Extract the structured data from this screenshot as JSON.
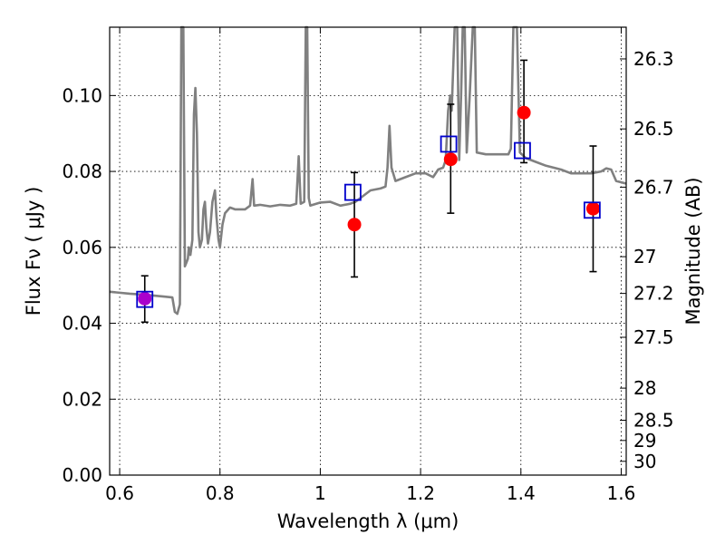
{
  "chart_data": {
    "type": "scatter",
    "title": "",
    "xlabel": "Wavelength  λ (μm)",
    "ylabel": "Flux  Fν  ( μJy )",
    "y2label": "Magnitude (AB)",
    "xlim": [
      0.58,
      1.61
    ],
    "ylim": [
      0.0,
      0.118
    ],
    "grid": true,
    "x_ticks": [
      0.6,
      0.8,
      1.0,
      1.2,
      1.4,
      1.6
    ],
    "x_tick_labels": [
      "0.6",
      "0.8",
      "1",
      "1.2",
      "1.4",
      "1.6"
    ],
    "y_ticks": [
      0.0,
      0.02,
      0.04,
      0.06,
      0.08,
      0.1
    ],
    "y_tick_labels": [
      "0.00",
      "0.02",
      "0.04",
      "0.06",
      "0.08",
      "0.10"
    ],
    "mag_ticks": [
      26.3,
      26.5,
      26.7,
      27,
      27.2,
      27.5,
      28,
      28.5,
      29,
      30
    ],
    "mag_tick_labels": [
      "26.3",
      "26.5",
      "26.7",
      "27",
      "27.2",
      "27.5",
      "28",
      "28.5",
      "29",
      "30"
    ],
    "model_spectrum": {
      "color": "#808080",
      "points": [
        [
          0.58,
          0.0483
        ],
        [
          0.62,
          0.0478
        ],
        [
          0.65,
          0.0475
        ],
        [
          0.69,
          0.047
        ],
        [
          0.705,
          0.0468
        ],
        [
          0.71,
          0.043
        ],
        [
          0.715,
          0.0425
        ],
        [
          0.72,
          0.045
        ],
        [
          0.723,
          0.118
        ],
        [
          0.727,
          0.118
        ],
        [
          0.73,
          0.055
        ],
        [
          0.733,
          0.056
        ],
        [
          0.736,
          0.057
        ],
        [
          0.738,
          0.06
        ],
        [
          0.741,
          0.058
        ],
        [
          0.745,
          0.062
        ],
        [
          0.748,
          0.095
        ],
        [
          0.751,
          0.102
        ],
        [
          0.754,
          0.09
        ],
        [
          0.757,
          0.064
        ],
        [
          0.76,
          0.06
        ],
        [
          0.764,
          0.062
        ],
        [
          0.767,
          0.07
        ],
        [
          0.77,
          0.072
        ],
        [
          0.773,
          0.065
        ],
        [
          0.776,
          0.061
        ],
        [
          0.78,
          0.064
        ],
        [
          0.785,
          0.072
        ],
        [
          0.79,
          0.075
        ],
        [
          0.793,
          0.068
        ],
        [
          0.797,
          0.062
        ],
        [
          0.8,
          0.06
        ],
        [
          0.805,
          0.066
        ],
        [
          0.81,
          0.069
        ],
        [
          0.82,
          0.0705
        ],
        [
          0.83,
          0.07
        ],
        [
          0.85,
          0.07
        ],
        [
          0.86,
          0.071
        ],
        [
          0.865,
          0.078
        ],
        [
          0.868,
          0.071
        ],
        [
          0.88,
          0.0712
        ],
        [
          0.9,
          0.0708
        ],
        [
          0.92,
          0.0712
        ],
        [
          0.94,
          0.071
        ],
        [
          0.952,
          0.0715
        ],
        [
          0.957,
          0.084
        ],
        [
          0.961,
          0.0715
        ],
        [
          0.968,
          0.072
        ],
        [
          0.971,
          0.118
        ],
        [
          0.974,
          0.118
        ],
        [
          0.977,
          0.073
        ],
        [
          0.98,
          0.071
        ],
        [
          1.0,
          0.0718
        ],
        [
          1.02,
          0.072
        ],
        [
          1.04,
          0.071
        ],
        [
          1.06,
          0.0715
        ],
        [
          1.07,
          0.072
        ],
        [
          1.08,
          0.073
        ],
        [
          1.1,
          0.075
        ],
        [
          1.12,
          0.0755
        ],
        [
          1.13,
          0.076
        ],
        [
          1.134,
          0.081
        ],
        [
          1.138,
          0.092
        ],
        [
          1.142,
          0.081
        ],
        [
          1.15,
          0.0775
        ],
        [
          1.17,
          0.0785
        ],
        [
          1.19,
          0.0795
        ],
        [
          1.21,
          0.0795
        ],
        [
          1.225,
          0.0785
        ],
        [
          1.235,
          0.0805
        ],
        [
          1.245,
          0.081
        ],
        [
          1.25,
          0.083
        ],
        [
          1.255,
          0.096
        ],
        [
          1.259,
          0.1
        ],
        [
          1.262,
          0.096
        ],
        [
          1.268,
          0.118
        ],
        [
          1.273,
          0.118
        ],
        [
          1.277,
          0.083
        ],
        [
          1.281,
          0.101
        ],
        [
          1.284,
          0.118
        ],
        [
          1.288,
          0.118
        ],
        [
          1.292,
          0.085
        ],
        [
          1.298,
          0.1
        ],
        [
          1.304,
          0.118
        ],
        [
          1.308,
          0.118
        ],
        [
          1.312,
          0.085
        ],
        [
          1.33,
          0.0845
        ],
        [
          1.36,
          0.0845
        ],
        [
          1.375,
          0.0845
        ],
        [
          1.38,
          0.086
        ],
        [
          1.385,
          0.118
        ],
        [
          1.392,
          0.118
        ],
        [
          1.398,
          0.085
        ],
        [
          1.41,
          0.0835
        ],
        [
          1.43,
          0.0825
        ],
        [
          1.45,
          0.0815
        ],
        [
          1.48,
          0.0805
        ],
        [
          1.5,
          0.0795
        ],
        [
          1.52,
          0.0795
        ],
        [
          1.54,
          0.0795
        ],
        [
          1.56,
          0.08
        ],
        [
          1.57,
          0.0808
        ],
        [
          1.58,
          0.0805
        ],
        [
          1.59,
          0.0775
        ],
        [
          1.61,
          0.0768
        ]
      ]
    },
    "series": [
      {
        "marker": "circle",
        "color": "#ff0000",
        "x": [
          0.65,
          1.068,
          1.26,
          1.406,
          1.544
        ],
        "y": [
          0.0465,
          0.066,
          0.0832,
          0.0955,
          0.0702
        ],
        "yerr_low": [
          0.0062,
          0.0138,
          0.0142,
          0.0132,
          0.0166
        ],
        "yerr_high": [
          0.006,
          0.0137,
          0.0145,
          0.0138,
          0.0165
        ]
      },
      {
        "marker": "open-square",
        "color": "#0000cc",
        "x": [
          0.65,
          1.065,
          1.256,
          1.403,
          1.542
        ],
        "y": [
          0.0463,
          0.0745,
          0.0872,
          0.0855,
          0.0698
        ]
      }
    ],
    "overlap_color": "#aa00cc"
  }
}
